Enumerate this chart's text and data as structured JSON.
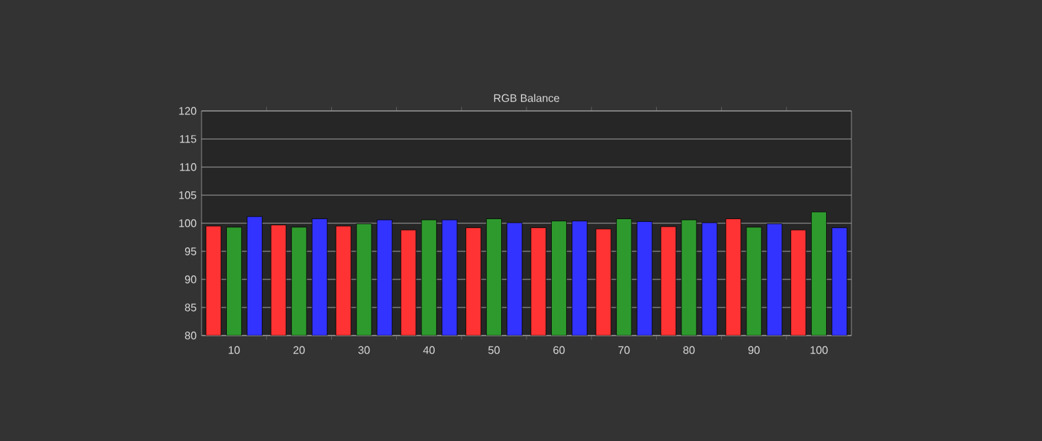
{
  "chart_data": {
    "type": "bar",
    "title": "RGB Balance",
    "categories": [
      "10",
      "20",
      "30",
      "40",
      "50",
      "60",
      "70",
      "80",
      "90",
      "100"
    ],
    "series": [
      {
        "color": "#ff3333",
        "values": [
          99.5,
          99.7,
          99.5,
          98.8,
          99.2,
          99.2,
          99.0,
          99.4,
          100.8,
          98.8
        ]
      },
      {
        "color": "#2e9a2e",
        "values": [
          99.3,
          99.3,
          99.9,
          100.6,
          100.8,
          100.4,
          100.8,
          100.6,
          99.3,
          102.0
        ]
      },
      {
        "color": "#3333ff",
        "values": [
          101.2,
          100.8,
          100.6,
          100.6,
          100.1,
          100.4,
          100.3,
          100.1,
          99.9,
          99.2
        ]
      }
    ],
    "ylim": [
      80,
      120
    ],
    "yticks": [
      80,
      85,
      90,
      95,
      100,
      105,
      110,
      115,
      120
    ],
    "grid": "y"
  }
}
